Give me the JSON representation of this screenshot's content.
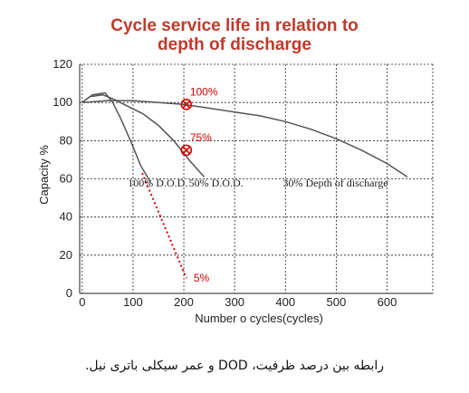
{
  "caption": "رابطه بین درصد ظرفیت، DOD و عمر سیکلی باتری نیل.",
  "chart_data": {
    "type": "line",
    "title_line1": "Cycle service life in relation to",
    "title_line2": "depth of discharge",
    "xlabel": "Number o cycles(cycles)",
    "ylabel": "Capacity %",
    "xlim": [
      -5,
      690
    ],
    "ylim": [
      0,
      120
    ],
    "xticks": [
      0,
      100,
      200,
      300,
      400,
      500,
      600
    ],
    "yticks": [
      0,
      20,
      40,
      60,
      80,
      100,
      120
    ],
    "xgrid": [
      0,
      100,
      200,
      300,
      400,
      500,
      600,
      690
    ],
    "ygrid": [
      20,
      40,
      60,
      80,
      100,
      120
    ],
    "series": [
      {
        "name": "100% D.O.D.",
        "color": "#555555",
        "x": [
          0,
          20,
          45,
          60,
          75,
          95,
          115,
          135
        ],
        "y": [
          100,
          104,
          105,
          100,
          92,
          80,
          67,
          58
        ]
      },
      {
        "name": "50% D.O.D.",
        "color": "#555555",
        "x": [
          0,
          15,
          40,
          60,
          90,
          120,
          150,
          180,
          210,
          240
        ],
        "y": [
          100,
          103,
          104,
          102,
          98,
          94,
          88,
          80,
          70,
          61
        ]
      },
      {
        "name": "30% Depth of discharge",
        "color": "#555555",
        "x": [
          0,
          50,
          100,
          150,
          200,
          250,
          300,
          350,
          400,
          450,
          500,
          550,
          600,
          640
        ],
        "y": [
          100,
          101,
          101,
          100,
          99,
          97,
          95,
          93,
          90,
          86,
          81,
          75,
          68,
          61
        ]
      }
    ],
    "extrapolation": {
      "color": "#d40000",
      "x": [
        118,
        205
      ],
      "y": [
        63,
        8
      ]
    },
    "markers": [
      {
        "x": 205,
        "y": 99,
        "label": "100%"
      },
      {
        "x": 205,
        "y": 75,
        "label": "75%"
      }
    ],
    "point_labels": [
      {
        "x": 205,
        "y": 8,
        "label": "5%"
      }
    ],
    "series_labels": [
      {
        "text": "100% D.O.D.",
        "x": 90,
        "y": 56
      },
      {
        "text": "50% D.O.D.",
        "x": 210,
        "y": 56
      },
      {
        "text": "30% Depth of discharge",
        "x": 395,
        "y": 56
      }
    ]
  }
}
